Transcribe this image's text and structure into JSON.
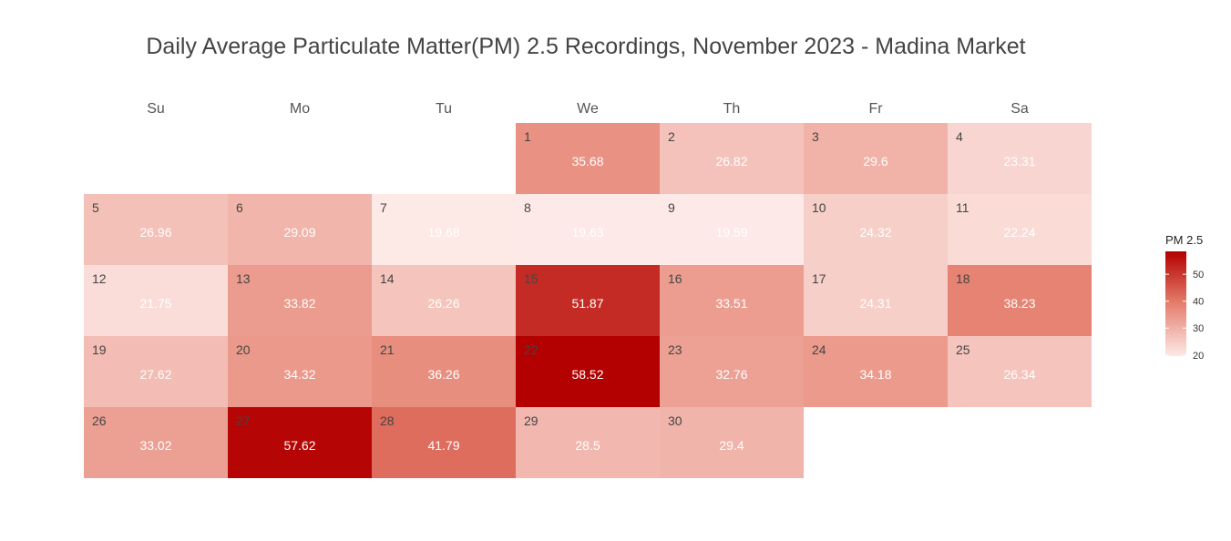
{
  "chart_data": {
    "type": "heatmap",
    "title": "Daily Average Particulate Matter(PM) 2.5 Recordings, November 2023 - Madina Market",
    "weekdays": [
      "Su",
      "Mo",
      "Tu",
      "We",
      "Th",
      "Fr",
      "Sa"
    ],
    "first_weekday_index": 3,
    "days": [
      1,
      2,
      3,
      4,
      5,
      6,
      7,
      8,
      9,
      10,
      11,
      12,
      13,
      14,
      15,
      16,
      17,
      18,
      19,
      20,
      21,
      22,
      23,
      24,
      25,
      26,
      27,
      28,
      29,
      30
    ],
    "values": [
      "35.68",
      "26.82",
      "29.6",
      "23.31",
      "26.96",
      "29.09",
      "19.68",
      "19.63",
      "19.59",
      "24.32",
      "22.24",
      "21.75",
      "33.82",
      "26.26",
      "51.87",
      "33.51",
      "24.31",
      "38.23",
      "27.62",
      "34.32",
      "36.26",
      "58.52",
      "32.76",
      "34.18",
      "26.34",
      "33.02",
      "57.62",
      "41.79",
      "28.5",
      "29.4"
    ],
    "legend": {
      "title": "PM 2.5",
      "ticks": [
        20,
        30,
        40,
        50
      ],
      "range": [
        19.59,
        58.52
      ],
      "color_low": "#fde9e7",
      "color_high": "#b30000"
    }
  }
}
